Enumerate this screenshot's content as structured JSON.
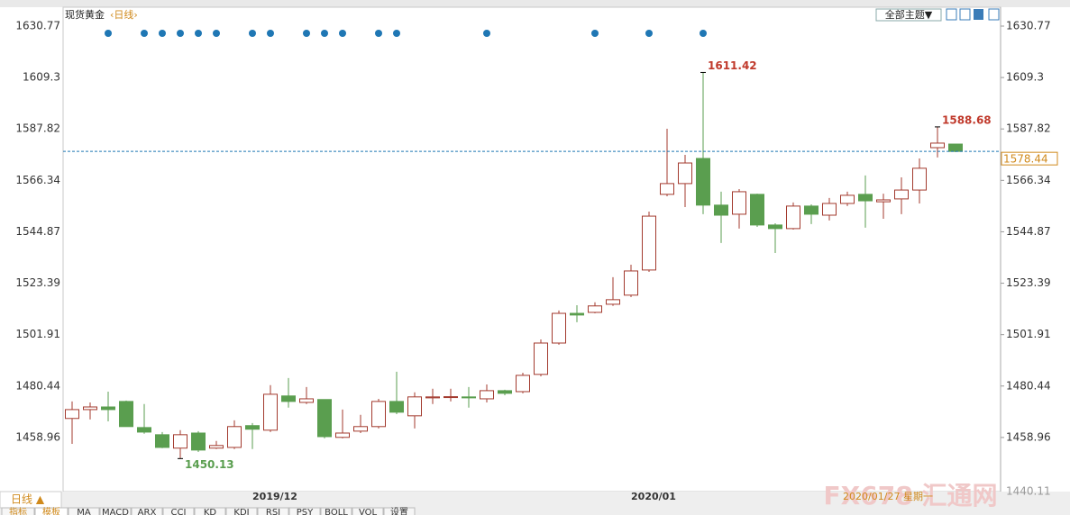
{
  "header": {
    "title": "现货黄金",
    "period": "‹日线›",
    "theme": "全部主题▼"
  },
  "footer": {
    "period": "日线 ▲",
    "tabs": [
      "指标",
      "模板",
      "MA",
      "MACD",
      "ARX",
      "CCI",
      "KD",
      "KDJ",
      "RSI",
      "PSY",
      "BOLL",
      "VOL",
      "设置"
    ],
    "date": "2020/01/27 星期一",
    "watermark": "FX678 汇通网"
  },
  "chart_data": {
    "type": "candlestick",
    "categories": [
      null,
      null,
      null,
      null,
      null,
      null,
      null,
      null,
      null,
      null,
      null,
      "2019/12",
      null,
      null,
      null,
      null,
      null,
      null,
      null,
      null,
      null,
      null,
      null,
      null,
      null,
      null,
      null,
      null,
      null,
      null,
      null,
      null,
      "2020/01",
      null,
      null,
      null,
      null,
      null,
      null,
      null,
      null,
      null,
      null,
      null,
      null,
      null,
      null,
      null,
      null,
      null
    ],
    "open": [
      1466.9,
      1470.6,
      1471.7,
      1474.0,
      1463.1,
      1460.1,
      1454.5,
      1460.8,
      1454.5,
      1454.8,
      1463.9,
      1462.0,
      1476.3,
      1473.6,
      1474.8,
      1459.0,
      1461.6,
      1463.5,
      1474.0,
      1468.0,
      1475.5,
      1475.9,
      1475.9,
      1475.1,
      1478.5,
      1478.1,
      1485.3,
      1498.4,
      1510.8,
      1511.2,
      1514.6,
      1518.4,
      1528.9,
      1560.5,
      1565.0,
      1575.5,
      1556.0,
      1552.2,
      1560.5,
      1547.7,
      1546.2,
      1555.6,
      1551.8,
      1556.7,
      1560.5,
      1557.4,
      1558.6,
      1562.3,
      1580.0,
      1581.5
    ],
    "high": [
      1474.0,
      1473.6,
      1478.1,
      1474.4,
      1472.9,
      1461.2,
      1462.0,
      1461.6,
      1457.5,
      1466.1,
      1465.0,
      1480.8,
      1483.8,
      1480.0,
      1474.8,
      1470.6,
      1468.4,
      1475.1,
      1486.4,
      1477.8,
      1479.3,
      1479.3,
      1480.0,
      1481.1,
      1478.9,
      1486.0,
      1499.9,
      1512.0,
      1514.2,
      1515.4,
      1525.9,
      1531.1,
      1553.3,
      1587.9,
      1577.0,
      1611.42,
      1561.6,
      1562.7,
      1560.8,
      1548.4,
      1557.1,
      1556.3,
      1559.0,
      1561.6,
      1568.4,
      1560.8,
      1567.6,
      1575.5,
      1588.68,
      1581.5
    ],
    "low": [
      1456.3,
      1466.5,
      1465.7,
      1463.5,
      1460.5,
      1454.5,
      1450.13,
      1452.9,
      1454.1,
      1454.1,
      1454.1,
      1461.2,
      1471.4,
      1472.9,
      1458.6,
      1458.6,
      1460.8,
      1462.7,
      1468.7,
      1462.7,
      1472.9,
      1474.0,
      1471.4,
      1473.6,
      1476.6,
      1477.4,
      1484.5,
      1497.7,
      1507.1,
      1510.8,
      1513.9,
      1517.6,
      1528.1,
      1559.7,
      1555.2,
      1552.2,
      1540.2,
      1546.2,
      1546.9,
      1536.0,
      1545.8,
      1548.1,
      1549.6,
      1555.6,
      1546.6,
      1550.3,
      1552.2,
      1556.7,
      1575.9,
      1578.1
    ],
    "close": [
      1470.6,
      1471.7,
      1470.6,
      1463.5,
      1461.2,
      1454.8,
      1460.1,
      1453.7,
      1455.6,
      1463.5,
      1462.4,
      1477.0,
      1474.0,
      1475.1,
      1459.3,
      1460.8,
      1463.5,
      1474.0,
      1469.5,
      1475.9,
      1475.9,
      1476.0,
      1475.5,
      1478.5,
      1477.4,
      1484.9,
      1498.4,
      1510.8,
      1510.1,
      1513.9,
      1516.5,
      1528.5,
      1551.4,
      1565.0,
      1573.6,
      1556.0,
      1551.8,
      1561.6,
      1547.7,
      1546.2,
      1555.6,
      1552.2,
      1556.7,
      1560.1,
      1557.8,
      1558.2,
      1562.3,
      1571.4,
      1581.9,
      1578.44
    ],
    "up_color": "#a33a2e",
    "down_color": "#5a9e4f",
    "ylim": [
      1440.11,
      1630.77
    ],
    "yticks": [
      1458.96,
      1480.44,
      1501.91,
      1523.39,
      1544.87,
      1566.34,
      1587.82,
      1609.3,
      1630.77
    ]
  }
}
